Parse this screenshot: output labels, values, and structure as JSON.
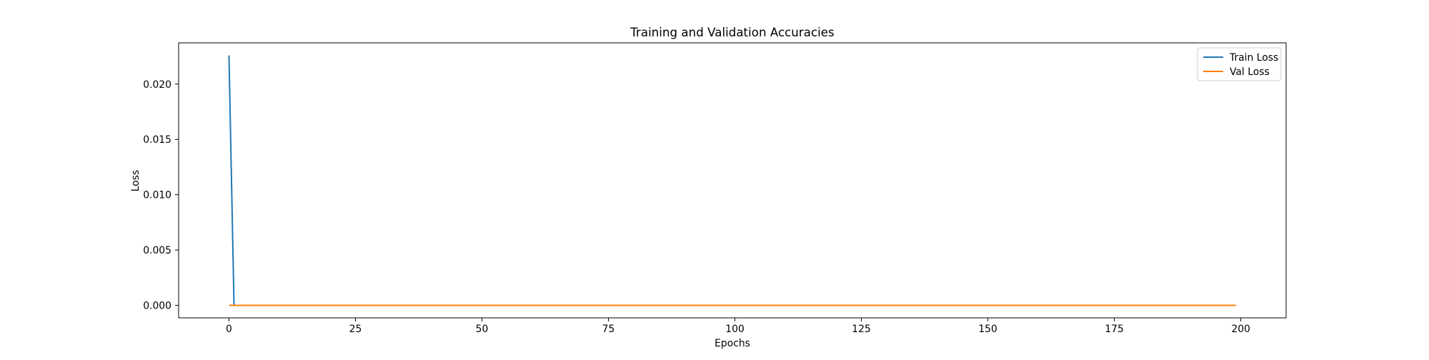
{
  "chart_data": {
    "type": "line",
    "title": "Training and Validation Accuracies",
    "xlabel": "Epochs",
    "ylabel": "Loss",
    "xlim": [
      -9.95,
      208.95
    ],
    "ylim": [
      -0.00113,
      0.02373
    ],
    "x_ticks": [
      0,
      25,
      50,
      75,
      100,
      125,
      150,
      175,
      200
    ],
    "x_tick_labels": [
      "0",
      "25",
      "50",
      "75",
      "100",
      "125",
      "150",
      "175",
      "200"
    ],
    "y_ticks": [
      0.0,
      0.005,
      0.01,
      0.015,
      0.02
    ],
    "y_tick_labels": [
      "0.000",
      "0.005",
      "0.010",
      "0.015",
      "0.020"
    ],
    "grid": false,
    "legend_position": "top-right",
    "series": [
      {
        "name": "Train Loss",
        "color": "#1f77b4",
        "x": [
          0,
          1,
          199
        ],
        "y": [
          0.0226,
          0.0,
          0.0
        ]
      },
      {
        "name": "Val Loss",
        "color": "#ff7f0e",
        "x": [
          0,
          199
        ],
        "y": [
          0.0,
          0.0
        ]
      }
    ]
  }
}
